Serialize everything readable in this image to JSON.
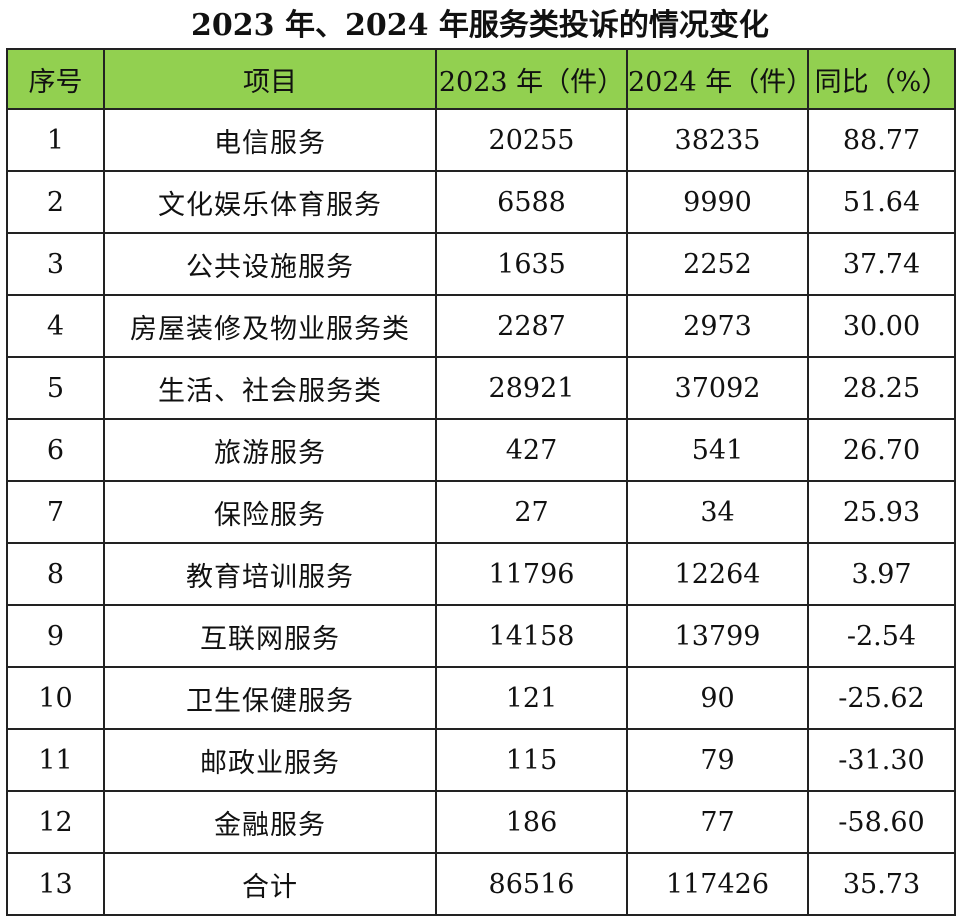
{
  "title": "2023 年、2024 年服务类投诉的情况变化",
  "header_color": "#92d050",
  "columns": [
    "序号",
    "项目",
    "2023 年（件）",
    "2024 年（件）",
    "同比（%）"
  ],
  "rows": [
    {
      "index": "1",
      "item": "电信服务",
      "y2023": "20255",
      "y2024": "38235",
      "yoy": "88.77"
    },
    {
      "index": "2",
      "item": "文化娱乐体育服务",
      "y2023": "6588",
      "y2024": "9990",
      "yoy": "51.64"
    },
    {
      "index": "3",
      "item": "公共设施服务",
      "y2023": "1635",
      "y2024": "2252",
      "yoy": "37.74"
    },
    {
      "index": "4",
      "item": "房屋装修及物业服务类",
      "y2023": "2287",
      "y2024": "2973",
      "yoy": "30.00"
    },
    {
      "index": "5",
      "item": "生活、社会服务类",
      "y2023": "28921",
      "y2024": "37092",
      "yoy": "28.25"
    },
    {
      "index": "6",
      "item": "旅游服务",
      "y2023": "427",
      "y2024": "541",
      "yoy": "26.70"
    },
    {
      "index": "7",
      "item": "保险服务",
      "y2023": "27",
      "y2024": "34",
      "yoy": "25.93"
    },
    {
      "index": "8",
      "item": "教育培训服务",
      "y2023": "11796",
      "y2024": "12264",
      "yoy": "3.97"
    },
    {
      "index": "9",
      "item": "互联网服务",
      "y2023": "14158",
      "y2024": "13799",
      "yoy": "-2.54"
    },
    {
      "index": "10",
      "item": "卫生保健服务",
      "y2023": "121",
      "y2024": "90",
      "yoy": "-25.62"
    },
    {
      "index": "11",
      "item": "邮政业服务",
      "y2023": "115",
      "y2024": "79",
      "yoy": "-31.30"
    },
    {
      "index": "12",
      "item": "金融服务",
      "y2023": "186",
      "y2024": "77",
      "yoy": "-58.60"
    },
    {
      "index": "13",
      "item": "合计",
      "y2023": "86516",
      "y2024": "117426",
      "yoy": "35.73"
    }
  ]
}
